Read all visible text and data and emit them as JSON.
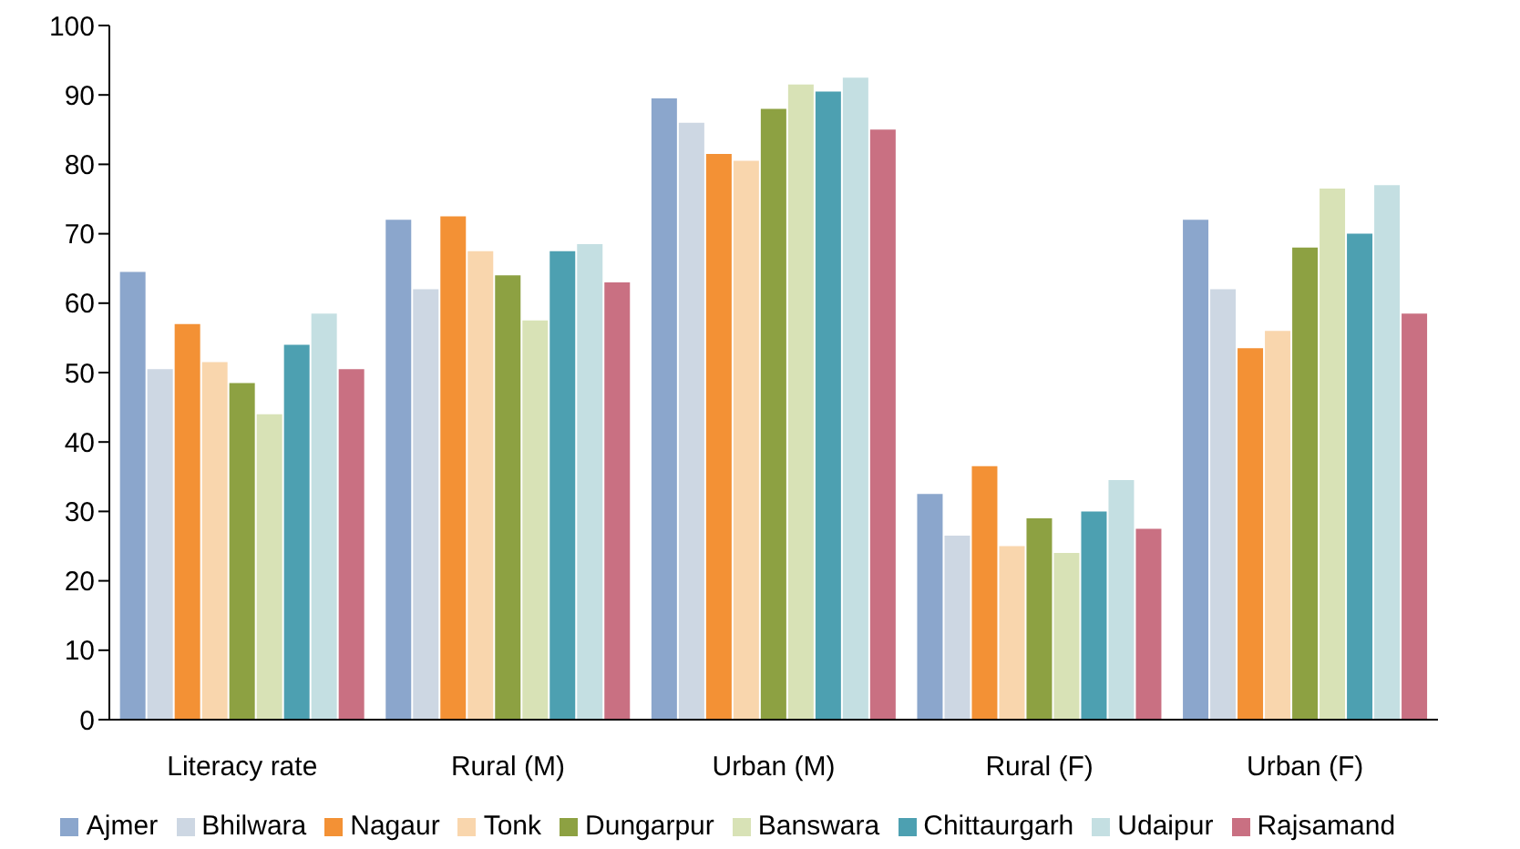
{
  "chart_data": {
    "type": "bar",
    "categories": [
      "Literacy rate",
      "Rural (M)",
      "Urban (M)",
      "Rural (F)",
      "Urban (F)"
    ],
    "ylim": [
      0,
      100
    ],
    "yticks": [
      0,
      10,
      20,
      30,
      40,
      50,
      60,
      70,
      80,
      90,
      100
    ],
    "grid": false,
    "legend": "bottom",
    "series": [
      {
        "name": "Ajmer",
        "color": "#8ba6cc",
        "values": [
          64.5,
          72,
          89.5,
          32.5,
          72
        ]
      },
      {
        "name": "Bhilwara",
        "color": "#cdd7e3",
        "values": [
          50.5,
          62,
          86,
          26.5,
          62
        ]
      },
      {
        "name": "Nagaur",
        "color": "#f39135",
        "values": [
          57,
          72.5,
          81.5,
          36.5,
          53.5
        ]
      },
      {
        "name": "Tonk",
        "color": "#f9d6ad",
        "values": [
          51.5,
          67.5,
          80.5,
          25,
          56
        ]
      },
      {
        "name": "Dungarpur",
        "color": "#8da142",
        "values": [
          48.5,
          64,
          88,
          29,
          68
        ]
      },
      {
        "name": "Banswara",
        "color": "#d8e2b6",
        "values": [
          44,
          57.5,
          91.5,
          24,
          76.5
        ]
      },
      {
        "name": "Chittaurgarh",
        "color": "#4da0b1",
        "values": [
          54,
          67.5,
          90.5,
          30,
          70
        ]
      },
      {
        "name": "Udaipur",
        "color": "#c4dfe2",
        "values": [
          58.5,
          68.5,
          92.5,
          34.5,
          77
        ]
      },
      {
        "name": "Rajsamand",
        "color": "#c97082",
        "values": [
          50.5,
          63,
          85,
          27.5,
          58.5
        ]
      }
    ]
  }
}
